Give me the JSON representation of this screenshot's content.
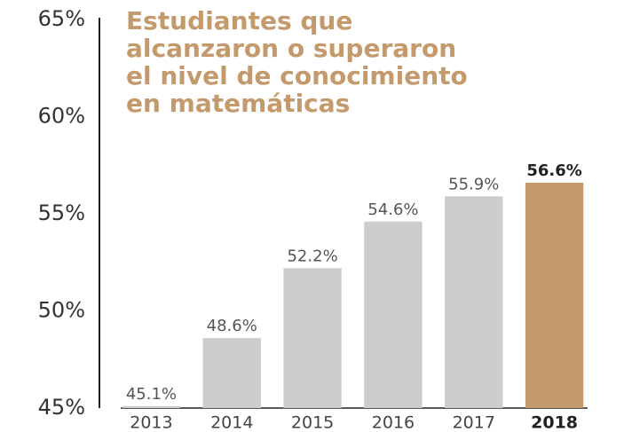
{
  "chart_data": {
    "type": "bar",
    "title": "Estudiantes que alcanzaron o superaron el nivel de conocimiento en matemáticas",
    "categories": [
      "2013",
      "2014",
      "2015",
      "2016",
      "2017",
      "2018"
    ],
    "values": [
      45.1,
      48.6,
      52.2,
      54.6,
      55.9,
      56.6
    ],
    "value_labels": [
      "45.1%",
      "48.6%",
      "52.2%",
      "54.6%",
      "55.9%",
      "56.6%"
    ],
    "color": "#cfcdcb",
    "highlight_color": "#c49a6c",
    "highlight": [
      false,
      false,
      false,
      false,
      false,
      true
    ],
    "ylim": [
      45,
      65
    ],
    "yticks": [
      {
        "value": 45,
        "label": "45%"
      },
      {
        "value": 50,
        "label": "50%"
      },
      {
        "value": 55,
        "label": "55%"
      },
      {
        "value": 60,
        "label": "60%"
      },
      {
        "value": 65,
        "label": "65%"
      }
    ],
    "grid": false
  }
}
